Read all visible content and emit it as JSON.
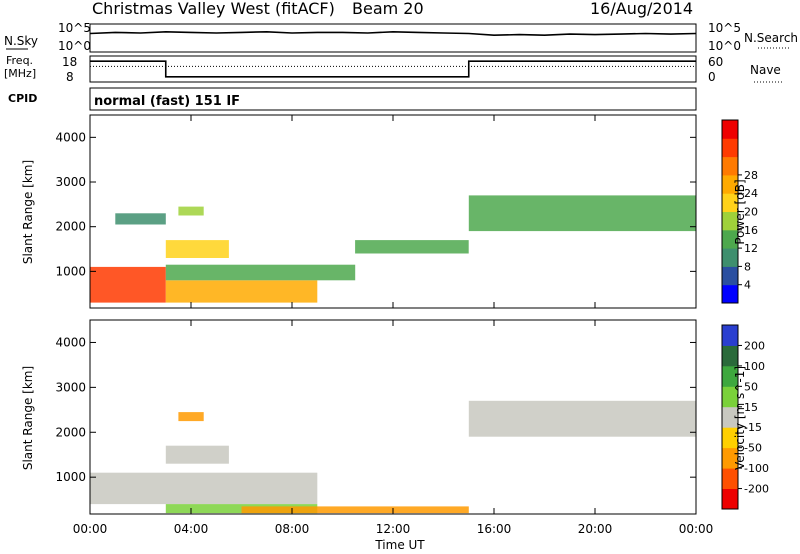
{
  "header": {
    "title": "Christmas Valley West (fitACF)",
    "beam": "Beam 20",
    "date": "16/Aug/2014"
  },
  "chart_data": [
    {
      "type": "line",
      "name": "noise-panel",
      "left_label": "N.Sky",
      "right_label": "N.Search",
      "left_ticks": [
        "10^5",
        "10^0"
      ],
      "right_ticks": [
        "10^5",
        "10^0"
      ],
      "scale": "log",
      "ylim": [
        1,
        100000
      ],
      "x_hours": [
        0,
        24
      ],
      "series": [
        {
          "name": "N.Sky",
          "level_log10": [
            3.3,
            3.5,
            3.4,
            3.6,
            3.5,
            3.4,
            3.5,
            3.6,
            3.4,
            3.5,
            3.5,
            3.4,
            3.6,
            3.5,
            3.4,
            3.3,
            3.0,
            3.1,
            3.0,
            3.2,
            3.1,
            3.2,
            3.3,
            3.2,
            3.3
          ]
        }
      ]
    },
    {
      "type": "line",
      "name": "frequency-panel",
      "left_label_line1": "Freq.",
      "left_label_line2": "[MHz]",
      "right_label": "Nave",
      "left_ticks": [
        "18",
        "8"
      ],
      "right_ticks": [
        "60",
        "0"
      ],
      "ylim_freq": [
        8,
        18
      ],
      "series": [
        {
          "name": "Freq.",
          "segments": [
            {
              "x": [
                0,
                3
              ],
              "y": 16
            },
            {
              "x": [
                3,
                15
              ],
              "y": 10
            },
            {
              "x": [
                15,
                24
              ],
              "y": 16
            }
          ]
        },
        {
          "name": "Nave",
          "segments": [
            {
              "x": [
                0,
                24
              ],
              "y": 14
            }
          ]
        }
      ]
    },
    {
      "type": "table",
      "name": "cpid-row",
      "label": "CPID",
      "value": "normal (fast) 151 IF"
    },
    {
      "type": "heatmap",
      "name": "power-panel",
      "ylabel": "Slant Range [km]",
      "ylim": [
        180,
        4500
      ],
      "yticks": [
        1000,
        2000,
        3000,
        4000
      ],
      "colorbar_label": "Power [dB]",
      "colorbar_ticks": [
        4,
        8,
        12,
        16,
        20,
        24,
        28
      ],
      "colorbar_colors": [
        "#0000ff",
        "#2a4fa0",
        "#3e8f6e",
        "#4da84d",
        "#9fd13a",
        "#ffd21a",
        "#ffaa00",
        "#ff7a00",
        "#ff3a00",
        "#ee0000"
      ],
      "echo_regions": [
        {
          "t": [
            0.0,
            3.0
          ],
          "r": [
            300,
            1100
          ],
          "level": 26
        },
        {
          "t": [
            3.0,
            9.0
          ],
          "r": [
            300,
            800
          ],
          "level": 22
        },
        {
          "t": [
            3.0,
            10.5
          ],
          "r": [
            800,
            1150
          ],
          "level": 10
        },
        {
          "t": [
            1.0,
            3.0
          ],
          "r": [
            2050,
            2300
          ],
          "level": 8
        },
        {
          "t": [
            3.5,
            4.5
          ],
          "r": [
            2250,
            2450
          ],
          "level": 14
        },
        {
          "t": [
            3.0,
            5.5
          ],
          "r": [
            1300,
            1700
          ],
          "level": 18
        },
        {
          "t": [
            10.5,
            15.0
          ],
          "r": [
            1400,
            1700
          ],
          "level": 10
        },
        {
          "t": [
            15.0,
            24.0
          ],
          "r": [
            1900,
            2700
          ],
          "level": 12
        }
      ]
    },
    {
      "type": "heatmap",
      "name": "velocity-panel",
      "ylabel": "Slant Range [km]",
      "ylim": [
        180,
        4500
      ],
      "yticks": [
        1000,
        2000,
        3000,
        4000
      ],
      "colorbar_label": "Velocity [m s^-1]",
      "colorbar_ticks": [
        200,
        100,
        50,
        15,
        -15,
        -50,
        -100,
        -200
      ],
      "colorbar_colors": [
        "#2a3fcf",
        "#2a6a3a",
        "#3ea83e",
        "#7ad13a",
        "#c8c8c0",
        "#ffd000",
        "#ff9a00",
        "#ff5000",
        "#ee0000"
      ],
      "echo_regions": [
        {
          "t": [
            0.0,
            9.0
          ],
          "r": [
            400,
            1100
          ],
          "level": 0
        },
        {
          "t": [
            3.0,
            9.0
          ],
          "r": [
            200,
            400
          ],
          "level": 40
        },
        {
          "t": [
            3.0,
            5.5
          ],
          "r": [
            1300,
            1700
          ],
          "level": 0
        },
        {
          "t": [
            3.5,
            4.5
          ],
          "r": [
            2250,
            2450
          ],
          "level": -80
        },
        {
          "t": [
            15.0,
            24.0
          ],
          "r": [
            1900,
            2700
          ],
          "level": 0
        },
        {
          "t": [
            6.0,
            15.0
          ],
          "r": [
            200,
            350
          ],
          "level": -60
        }
      ]
    },
    {
      "type": "axis",
      "name": "time-axis",
      "xlabel": "Time UT",
      "xticks": [
        "00:00",
        "04:00",
        "08:00",
        "12:00",
        "16:00",
        "20:00",
        "00:00"
      ]
    }
  ]
}
